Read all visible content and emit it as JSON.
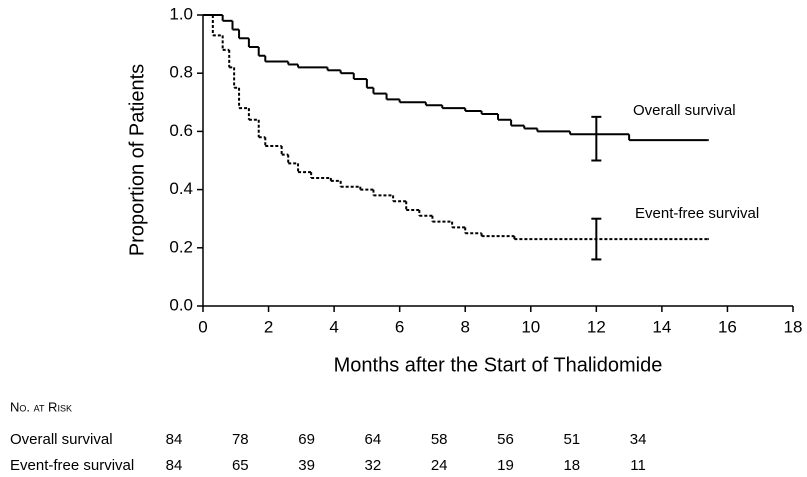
{
  "chart_data": {
    "type": "step",
    "y_label": "Proportion of Patients",
    "x_label": "Months after the Start of Thalidomide",
    "xlim": [
      0,
      18
    ],
    "xticks": [
      0,
      2,
      4,
      6,
      8,
      10,
      12,
      14,
      16,
      18
    ],
    "ylim": [
      0,
      1
    ],
    "yticks": [
      {
        "value": 0,
        "label": "0.0"
      },
      0.2,
      0.4,
      0.6,
      0.8,
      {
        "value": 1,
        "label": "1.0"
      }
    ],
    "series": [
      {
        "name": "Overall survival",
        "color": "#000000",
        "dashed": false,
        "x": [
          0,
          0.6,
          0.9,
          1.1,
          1.4,
          1.7,
          1.9,
          2.6,
          2.9,
          3.8,
          4.2,
          4.6,
          5.0,
          5.2,
          5.6,
          6.0,
          6.8,
          7.3,
          8.0,
          8.5,
          9.0,
          9.4,
          9.8,
          10.2,
          11.2,
          13.0,
          15.4
        ],
        "values": [
          1.0,
          0.98,
          0.95,
          0.92,
          0.89,
          0.86,
          0.84,
          0.83,
          0.82,
          0.81,
          0.8,
          0.78,
          0.75,
          0.73,
          0.71,
          0.7,
          0.69,
          0.68,
          0.67,
          0.66,
          0.64,
          0.62,
          0.61,
          0.6,
          0.59,
          0.57,
          0.57
        ],
        "ci": {
          "x": 12,
          "low": 0.5,
          "high": 0.65
        }
      },
      {
        "name": "Event-free survival",
        "color": "#000000",
        "dashed": true,
        "x": [
          0,
          0.3,
          0.6,
          0.8,
          0.95,
          1.1,
          1.4,
          1.7,
          1.9,
          2.4,
          2.6,
          2.9,
          3.3,
          3.9,
          4.2,
          4.8,
          5.2,
          5.8,
          6.2,
          6.6,
          7.0,
          7.6,
          8.0,
          8.5,
          9.5,
          15.4
        ],
        "values": [
          1.0,
          0.93,
          0.88,
          0.82,
          0.75,
          0.68,
          0.64,
          0.58,
          0.55,
          0.52,
          0.49,
          0.46,
          0.44,
          0.43,
          0.41,
          0.4,
          0.38,
          0.36,
          0.33,
          0.31,
          0.29,
          0.27,
          0.25,
          0.24,
          0.23,
          0.23
        ],
        "ci": {
          "x": 12,
          "low": 0.16,
          "high": 0.3
        }
      }
    ],
    "risk_table": {
      "title": "No. at Risk",
      "rows": [
        {
          "label": "Overall survival",
          "values": [
            84,
            78,
            69,
            64,
            58,
            56,
            51,
            34
          ]
        },
        {
          "label": "Event-free survival",
          "values": [
            84,
            65,
            39,
            32,
            24,
            19,
            18,
            11
          ]
        }
      ]
    }
  }
}
